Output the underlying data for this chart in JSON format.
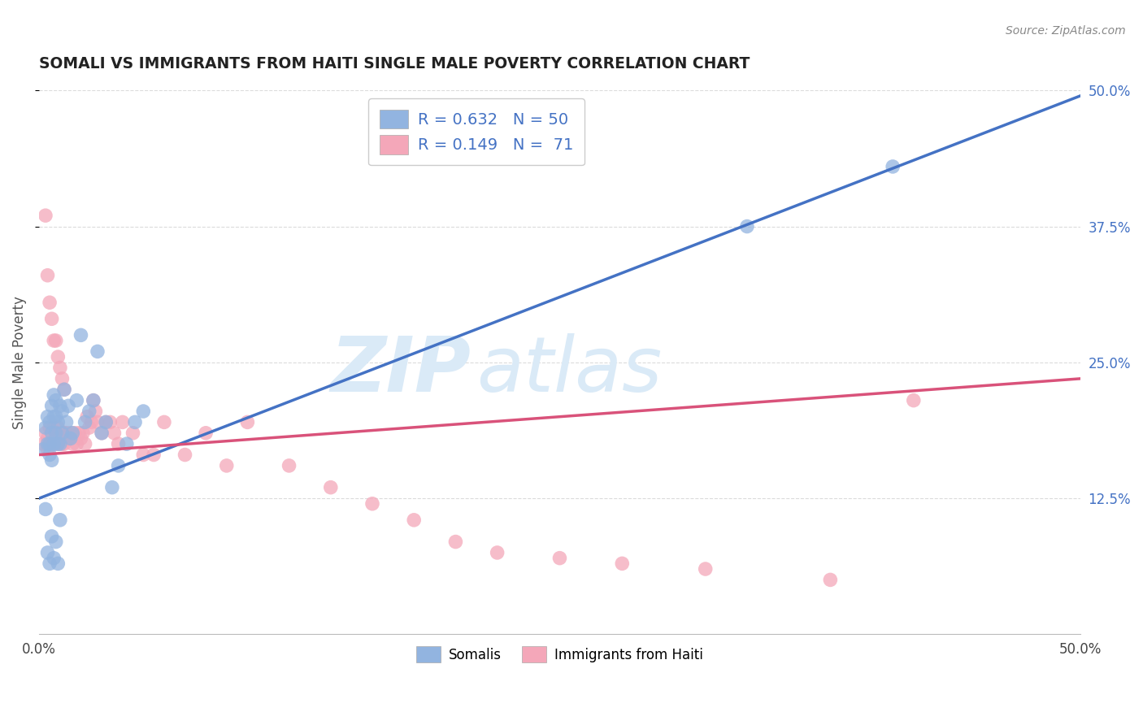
{
  "title": "SOMALI VS IMMIGRANTS FROM HAITI SINGLE MALE POVERTY CORRELATION CHART",
  "source": "Source: ZipAtlas.com",
  "ylabel": "Single Male Poverty",
  "ytick_values": [
    0.125,
    0.25,
    0.375,
    0.5
  ],
  "ytick_labels": [
    "12.5%",
    "25.0%",
    "37.5%",
    "50.0%"
  ],
  "xtick_values": [
    0.0,
    0.5
  ],
  "xtick_labels": [
    "0.0%",
    "50.0%"
  ],
  "legend1_text": "R = 0.632   N = 50",
  "legend2_text": "R = 0.149   N =  71",
  "bottom_legend1": "Somalis",
  "bottom_legend2": "Immigrants from Haiti",
  "blue_scatter_color": "#92b4e0",
  "pink_scatter_color": "#f4a7b9",
  "blue_line_color": "#4472c4",
  "pink_line_color": "#d9527a",
  "watermark_color": "#daeaf7",
  "background_color": "#ffffff",
  "grid_color": "#cccccc",
  "title_color": "#222222",
  "source_color": "#888888",
  "legend_text_color": "#4472c4",
  "xlim": [
    0.0,
    0.5
  ],
  "ylim": [
    0.0,
    0.5
  ],
  "blue_intercept": 0.125,
  "blue_slope": 0.74,
  "pink_intercept": 0.165,
  "pink_slope": 0.14,
  "somali_x": [
    0.002,
    0.003,
    0.004,
    0.004,
    0.005,
    0.005,
    0.005,
    0.006,
    0.006,
    0.006,
    0.007,
    0.007,
    0.007,
    0.008,
    0.008,
    0.008,
    0.009,
    0.009,
    0.01,
    0.01,
    0.011,
    0.011,
    0.012,
    0.013,
    0.014,
    0.015,
    0.016,
    0.018,
    0.02,
    0.022,
    0.024,
    0.026,
    0.028,
    0.03,
    0.032,
    0.035,
    0.038,
    0.042,
    0.046,
    0.05,
    0.003,
    0.004,
    0.005,
    0.006,
    0.007,
    0.008,
    0.009,
    0.01,
    0.34,
    0.41
  ],
  "somali_y": [
    0.17,
    0.19,
    0.175,
    0.2,
    0.165,
    0.195,
    0.175,
    0.16,
    0.185,
    0.21,
    0.175,
    0.2,
    0.22,
    0.185,
    0.2,
    0.215,
    0.175,
    0.195,
    0.175,
    0.21,
    0.185,
    0.205,
    0.225,
    0.195,
    0.21,
    0.18,
    0.185,
    0.215,
    0.275,
    0.195,
    0.205,
    0.215,
    0.26,
    0.185,
    0.195,
    0.135,
    0.155,
    0.175,
    0.195,
    0.205,
    0.115,
    0.075,
    0.065,
    0.09,
    0.07,
    0.085,
    0.065,
    0.105,
    0.375,
    0.43
  ],
  "haiti_x": [
    0.002,
    0.003,
    0.004,
    0.004,
    0.005,
    0.005,
    0.006,
    0.006,
    0.007,
    0.007,
    0.008,
    0.008,
    0.009,
    0.009,
    0.01,
    0.01,
    0.011,
    0.011,
    0.012,
    0.012,
    0.013,
    0.014,
    0.015,
    0.016,
    0.017,
    0.018,
    0.019,
    0.02,
    0.021,
    0.022,
    0.023,
    0.024,
    0.025,
    0.026,
    0.027,
    0.028,
    0.03,
    0.032,
    0.034,
    0.036,
    0.038,
    0.04,
    0.045,
    0.05,
    0.055,
    0.06,
    0.07,
    0.08,
    0.09,
    0.1,
    0.12,
    0.14,
    0.16,
    0.18,
    0.2,
    0.22,
    0.25,
    0.28,
    0.32,
    0.38,
    0.003,
    0.004,
    0.005,
    0.006,
    0.007,
    0.008,
    0.009,
    0.01,
    0.011,
    0.012,
    0.42
  ],
  "haiti_y": [
    0.175,
    0.185,
    0.18,
    0.17,
    0.19,
    0.175,
    0.185,
    0.175,
    0.19,
    0.175,
    0.185,
    0.175,
    0.19,
    0.175,
    0.185,
    0.18,
    0.175,
    0.185,
    0.185,
    0.175,
    0.185,
    0.18,
    0.185,
    0.175,
    0.185,
    0.175,
    0.185,
    0.18,
    0.185,
    0.175,
    0.2,
    0.19,
    0.195,
    0.215,
    0.205,
    0.195,
    0.185,
    0.195,
    0.195,
    0.185,
    0.175,
    0.195,
    0.185,
    0.165,
    0.165,
    0.195,
    0.165,
    0.185,
    0.155,
    0.195,
    0.155,
    0.135,
    0.12,
    0.105,
    0.085,
    0.075,
    0.07,
    0.065,
    0.06,
    0.05,
    0.385,
    0.33,
    0.305,
    0.29,
    0.27,
    0.27,
    0.255,
    0.245,
    0.235,
    0.225,
    0.215
  ]
}
